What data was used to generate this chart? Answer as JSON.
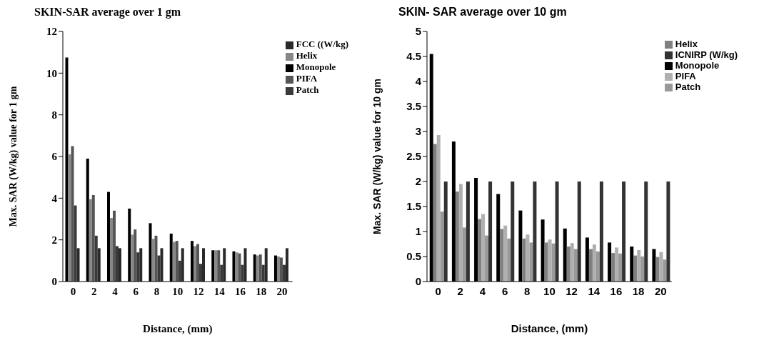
{
  "chart_data": [
    {
      "type": "bar",
      "title": "SKIN-SAR average over 1 gm",
      "xlabel": "Distance, (mm)",
      "ylabel": "Max. SAR (W/kg) value for 1 gm",
      "categories": [
        "0",
        "2",
        "4",
        "6",
        "8",
        "10",
        "12",
        "14",
        "16",
        "18",
        "20"
      ],
      "ylim": [
        0,
        12
      ],
      "yticks": [
        0,
        2,
        4,
        6,
        8,
        10,
        12
      ],
      "grid": false,
      "legend": "top right",
      "series": [
        {
          "name": "Monopole",
          "color": "#000000",
          "values": [
            10.75,
            5.9,
            4.3,
            3.5,
            2.8,
            2.3,
            1.95,
            1.5,
            1.45,
            1.3,
            1.25
          ]
        },
        {
          "name": "Helix",
          "color": "#888888",
          "values": [
            6.1,
            3.95,
            3.05,
            2.25,
            2.05,
            1.9,
            1.7,
            1.5,
            1.4,
            1.25,
            1.2
          ]
        },
        {
          "name": "PIFA",
          "color": "#555555",
          "values": [
            6.5,
            4.15,
            3.4,
            2.5,
            2.2,
            1.95,
            1.8,
            1.5,
            1.35,
            1.3,
            1.15
          ]
        },
        {
          "name": "Patch",
          "color": "#3a3a3a",
          "values": [
            3.65,
            2.2,
            1.7,
            1.4,
            1.25,
            1.0,
            0.85,
            0.8,
            0.8,
            0.8,
            0.8
          ]
        },
        {
          "name": "FCC ((W/kg)",
          "color": "#2a2a2a",
          "values": [
            1.6,
            1.6,
            1.6,
            1.6,
            1.6,
            1.6,
            1.6,
            1.6,
            1.6,
            1.6,
            1.6
          ]
        }
      ]
    },
    {
      "type": "bar",
      "title": "SKIN- SAR average over 10 gm",
      "xlabel": "Distance, (mm)",
      "ylabel": "Max. SAR (W/kg) value for 10 gm",
      "categories": [
        "0",
        "2",
        "4",
        "6",
        "8",
        "10",
        "12",
        "14",
        "16",
        "18",
        "20"
      ],
      "ylim": [
        0,
        5
      ],
      "yticks": [
        0,
        0.5,
        1,
        1.5,
        2,
        2.5,
        3,
        3.5,
        4,
        4.5,
        5
      ],
      "grid": false,
      "legend": "top right",
      "series": [
        {
          "name": "Monopole",
          "color": "#000000",
          "values": [
            4.55,
            2.8,
            2.07,
            1.75,
            1.42,
            1.24,
            1.06,
            0.88,
            0.78,
            0.7,
            0.65
          ]
        },
        {
          "name": "Helix",
          "color": "#808080",
          "values": [
            2.75,
            1.8,
            1.25,
            1.05,
            0.86,
            0.78,
            0.7,
            0.65,
            0.57,
            0.52,
            0.49
          ]
        },
        {
          "name": "PIFA",
          "color": "#b0b0b0",
          "values": [
            2.93,
            1.95,
            1.35,
            1.12,
            0.94,
            0.84,
            0.77,
            0.74,
            0.68,
            0.63,
            0.59
          ]
        },
        {
          "name": "Patch",
          "color": "#999999",
          "values": [
            1.4,
            1.08,
            0.92,
            0.86,
            0.78,
            0.76,
            0.65,
            0.6,
            0.56,
            0.5,
            0.44
          ]
        },
        {
          "name": "ICNIRP (W/kg)",
          "color": "#333333",
          "values": [
            2,
            2,
            2,
            2,
            2,
            2,
            2,
            2,
            2,
            2,
            2
          ]
        }
      ]
    }
  ]
}
